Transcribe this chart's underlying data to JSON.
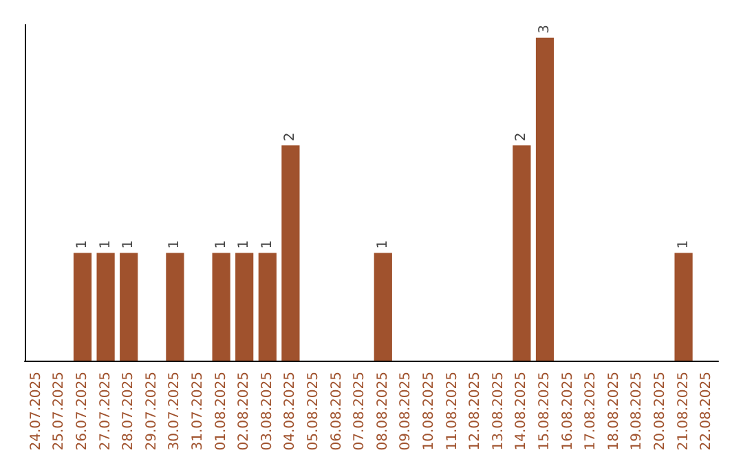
{
  "chart_data": {
    "type": "bar",
    "categories": [
      "24.07.2025",
      "25.07.2025",
      "26.07.2025",
      "27.07.2025",
      "28.07.2025",
      "29.07.2025",
      "30.07.2025",
      "31.07.2025",
      "01.08.2025",
      "02.08.2025",
      "03.08.2025",
      "04.08.2025",
      "05.08.2025",
      "06.08.2025",
      "07.08.2025",
      "08.08.2025",
      "09.08.2025",
      "10.08.2025",
      "11.08.2025",
      "12.08.2025",
      "13.08.2025",
      "14.08.2025",
      "15.08.2025",
      "16.08.2025",
      "17.08.2025",
      "18.08.2025",
      "19.08.2025",
      "20.08.2025",
      "21.08.2025",
      "22.08.2025"
    ],
    "values": [
      0,
      0,
      1,
      1,
      1,
      0,
      1,
      0,
      1,
      1,
      1,
      2,
      0,
      0,
      0,
      1,
      0,
      0,
      0,
      0,
      0,
      2,
      3,
      0,
      0,
      0,
      0,
      0,
      1,
      0
    ],
    "value_labels": [
      null,
      null,
      "1",
      "1",
      "1",
      null,
      "1",
      null,
      "1",
      "1",
      "1",
      "2",
      null,
      null,
      null,
      "1",
      null,
      null,
      null,
      null,
      null,
      "2",
      "3",
      null,
      null,
      null,
      null,
      null,
      "1",
      null
    ],
    "color": "#a0522d",
    "tick_labels": "x"
  }
}
